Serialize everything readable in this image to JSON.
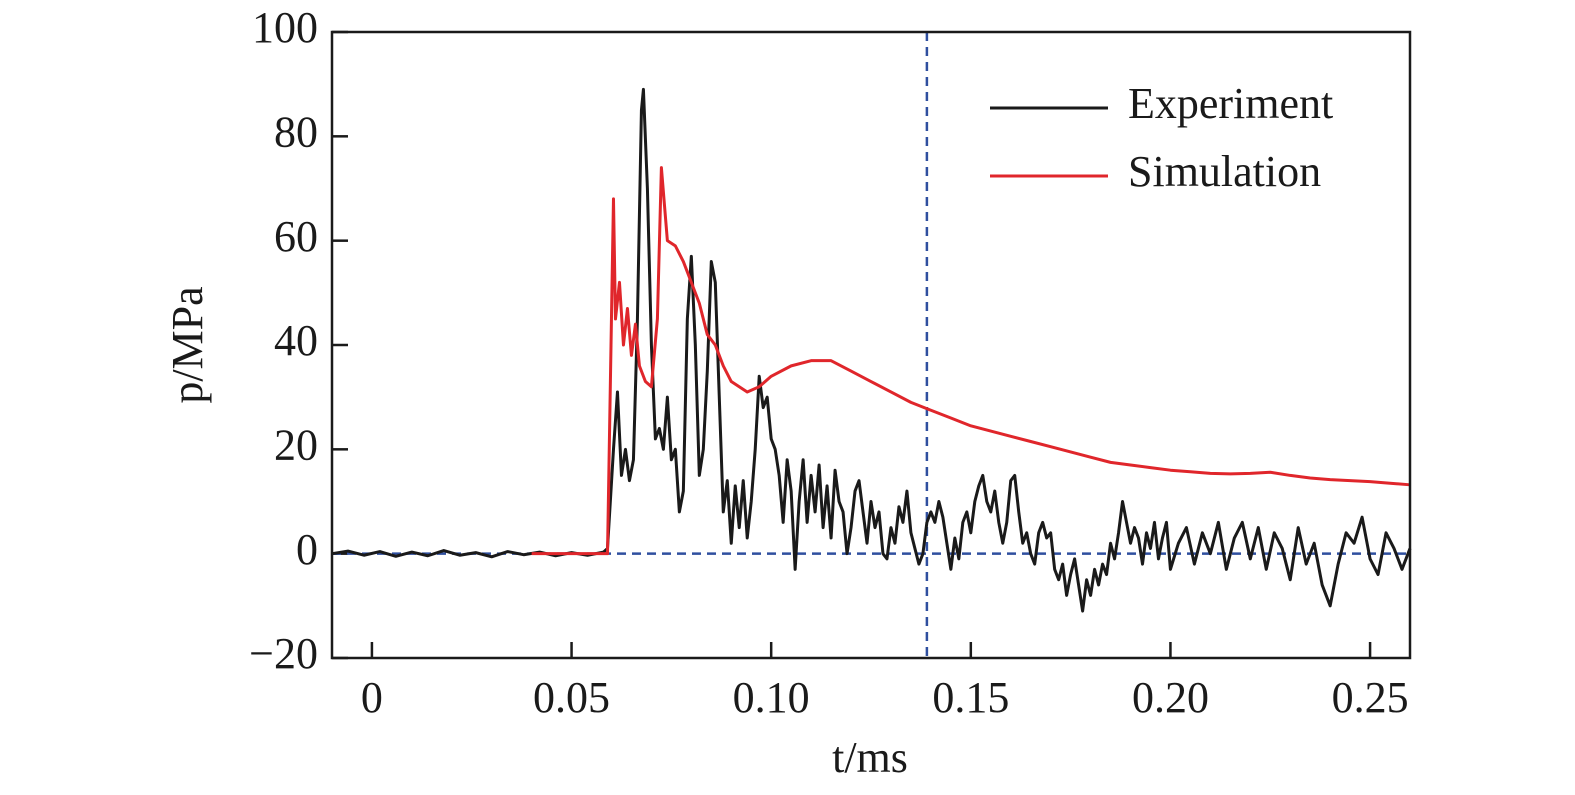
{
  "chart_data": {
    "type": "line",
    "xlabel": "t/ms",
    "ylabel": "p/MPa",
    "xlim": [
      -0.01,
      0.26
    ],
    "xticks": [
      0,
      0.05,
      {
        "value": 0.1,
        "label": "0.10"
      },
      0.15,
      {
        "value": 0.2,
        "label": "0.20"
      },
      0.25
    ],
    "ylim": [
      -20,
      100
    ],
    "yticks": [
      {
        "value": -20,
        "label": "−20"
      },
      0,
      20,
      40,
      60,
      80,
      100
    ],
    "legend": "top-right",
    "reference_lines": {
      "x": [
        0.139
      ],
      "y": [
        0
      ],
      "color": "#2f4f9f"
    },
    "series": [
      {
        "name": "Experiment",
        "color": "#1a1a1a",
        "x": [
          -0.01,
          -0.006,
          -0.002,
          0.002,
          0.006,
          0.01,
          0.014,
          0.018,
          0.022,
          0.026,
          0.03,
          0.034,
          0.038,
          0.042,
          0.046,
          0.05,
          0.054,
          0.058,
          0.059,
          0.0605,
          0.0615,
          0.0625,
          0.0635,
          0.0645,
          0.0655,
          0.0665,
          0.0675,
          0.068,
          0.069,
          0.07,
          0.071,
          0.072,
          0.073,
          0.074,
          0.075,
          0.076,
          0.077,
          0.078,
          0.079,
          0.08,
          0.081,
          0.082,
          0.083,
          0.084,
          0.085,
          0.086,
          0.087,
          0.088,
          0.089,
          0.09,
          0.091,
          0.092,
          0.093,
          0.094,
          0.095,
          0.096,
          0.097,
          0.098,
          0.099,
          0.1,
          0.101,
          0.102,
          0.103,
          0.104,
          0.105,
          0.106,
          0.107,
          0.108,
          0.109,
          0.11,
          0.111,
          0.112,
          0.113,
          0.114,
          0.115,
          0.116,
          0.117,
          0.118,
          0.119,
          0.12,
          0.121,
          0.122,
          0.123,
          0.124,
          0.125,
          0.126,
          0.127,
          0.128,
          0.129,
          0.13,
          0.131,
          0.132,
          0.133,
          0.134,
          0.135,
          0.136,
          0.137,
          0.138,
          0.139,
          0.14,
          0.141,
          0.142,
          0.143,
          0.144,
          0.145,
          0.146,
          0.147,
          0.148,
          0.149,
          0.15,
          0.151,
          0.152,
          0.153,
          0.154,
          0.155,
          0.156,
          0.157,
          0.158,
          0.159,
          0.16,
          0.161,
          0.162,
          0.163,
          0.164,
          0.165,
          0.166,
          0.167,
          0.168,
          0.169,
          0.17,
          0.171,
          0.172,
          0.173,
          0.174,
          0.175,
          0.176,
          0.177,
          0.178,
          0.179,
          0.18,
          0.181,
          0.182,
          0.183,
          0.184,
          0.185,
          0.186,
          0.187,
          0.188,
          0.189,
          0.19,
          0.191,
          0.192,
          0.193,
          0.194,
          0.195,
          0.196,
          0.197,
          0.198,
          0.199,
          0.2,
          0.202,
          0.204,
          0.206,
          0.208,
          0.21,
          0.212,
          0.214,
          0.216,
          0.218,
          0.22,
          0.222,
          0.224,
          0.226,
          0.228,
          0.23,
          0.232,
          0.234,
          0.236,
          0.238,
          0.24,
          0.242,
          0.244,
          0.246,
          0.248,
          0.25,
          0.252,
          0.254,
          0.256,
          0.258,
          0.26
        ],
        "values": [
          0,
          0.5,
          -0.3,
          0.4,
          -0.5,
          0.3,
          -0.4,
          0.6,
          -0.3,
          0.2,
          -0.6,
          0.4,
          -0.2,
          0.3,
          -0.4,
          0.2,
          -0.3,
          0.3,
          1,
          20,
          31,
          15,
          20,
          14,
          18,
          45,
          85,
          89,
          70,
          40,
          22,
          24,
          20,
          30,
          18,
          20,
          8,
          12,
          45,
          57,
          40,
          15,
          20,
          35,
          56,
          52,
          30,
          8,
          14,
          2,
          13,
          5,
          14,
          3,
          10,
          20,
          34,
          28,
          30,
          22,
          20,
          15,
          6,
          18,
          12,
          -3,
          10,
          18,
          6,
          15,
          8,
          17,
          5,
          13,
          3,
          16,
          10,
          8,
          0,
          5,
          12,
          14,
          8,
          2,
          10,
          5,
          8,
          0,
          -1,
          5,
          2,
          9,
          6,
          12,
          4,
          1,
          -2,
          0,
          6,
          8,
          6,
          10,
          7,
          2,
          -3,
          3,
          -1,
          6,
          8,
          4,
          10,
          13,
          15,
          10,
          8,
          12,
          6,
          2,
          6,
          14,
          15,
          8,
          2,
          4,
          0,
          -2,
          4,
          6,
          3,
          4,
          -3,
          -5,
          -2,
          -8,
          -4,
          -1,
          -6,
          -11,
          -5,
          -8,
          -3,
          -6,
          -2,
          -4,
          2,
          -1,
          4,
          10,
          6,
          2,
          5,
          3,
          -2,
          4,
          1,
          6,
          -1,
          3,
          6,
          -3,
          2,
          5,
          -2,
          4,
          0,
          6,
          -3,
          3,
          6,
          -1,
          5,
          -3,
          4,
          1,
          -5,
          5,
          -2,
          2,
          -6,
          -10,
          -2,
          4,
          2,
          7,
          -1,
          -4,
          4,
          1,
          -3,
          1
        ]
      },
      {
        "name": "Simulation",
        "color": "#e0262b",
        "x": [
          0.04,
          0.059,
          0.0605,
          0.061,
          0.062,
          0.063,
          0.064,
          0.065,
          0.066,
          0.067,
          0.0685,
          0.07,
          0.0715,
          0.0725,
          0.074,
          0.076,
          0.078,
          0.08,
          0.082,
          0.084,
          0.086,
          0.088,
          0.09,
          0.094,
          0.097,
          0.1,
          0.105,
          0.11,
          0.115,
          0.12,
          0.125,
          0.13,
          0.135,
          0.14,
          0.145,
          0.15,
          0.155,
          0.16,
          0.165,
          0.17,
          0.175,
          0.18,
          0.185,
          0.19,
          0.195,
          0.2,
          0.205,
          0.21,
          0.215,
          0.22,
          0.225,
          0.23,
          0.235,
          0.24,
          0.245,
          0.25,
          0.255,
          0.26
        ],
        "values": [
          0,
          0,
          68,
          45,
          52,
          40,
          47,
          38,
          44,
          36,
          33,
          32,
          45,
          74,
          60,
          59,
          56,
          52,
          48,
          42,
          40,
          36,
          33,
          31,
          32,
          34,
          36,
          37,
          37,
          35,
          33,
          31,
          29,
          27.5,
          26,
          24.5,
          23.5,
          22.5,
          21.5,
          20.5,
          19.5,
          18.5,
          17.5,
          17,
          16.5,
          16,
          15.7,
          15.4,
          15.3,
          15.4,
          15.6,
          15,
          14.5,
          14.2,
          14,
          13.8,
          13.5,
          13.2
        ]
      }
    ]
  }
}
